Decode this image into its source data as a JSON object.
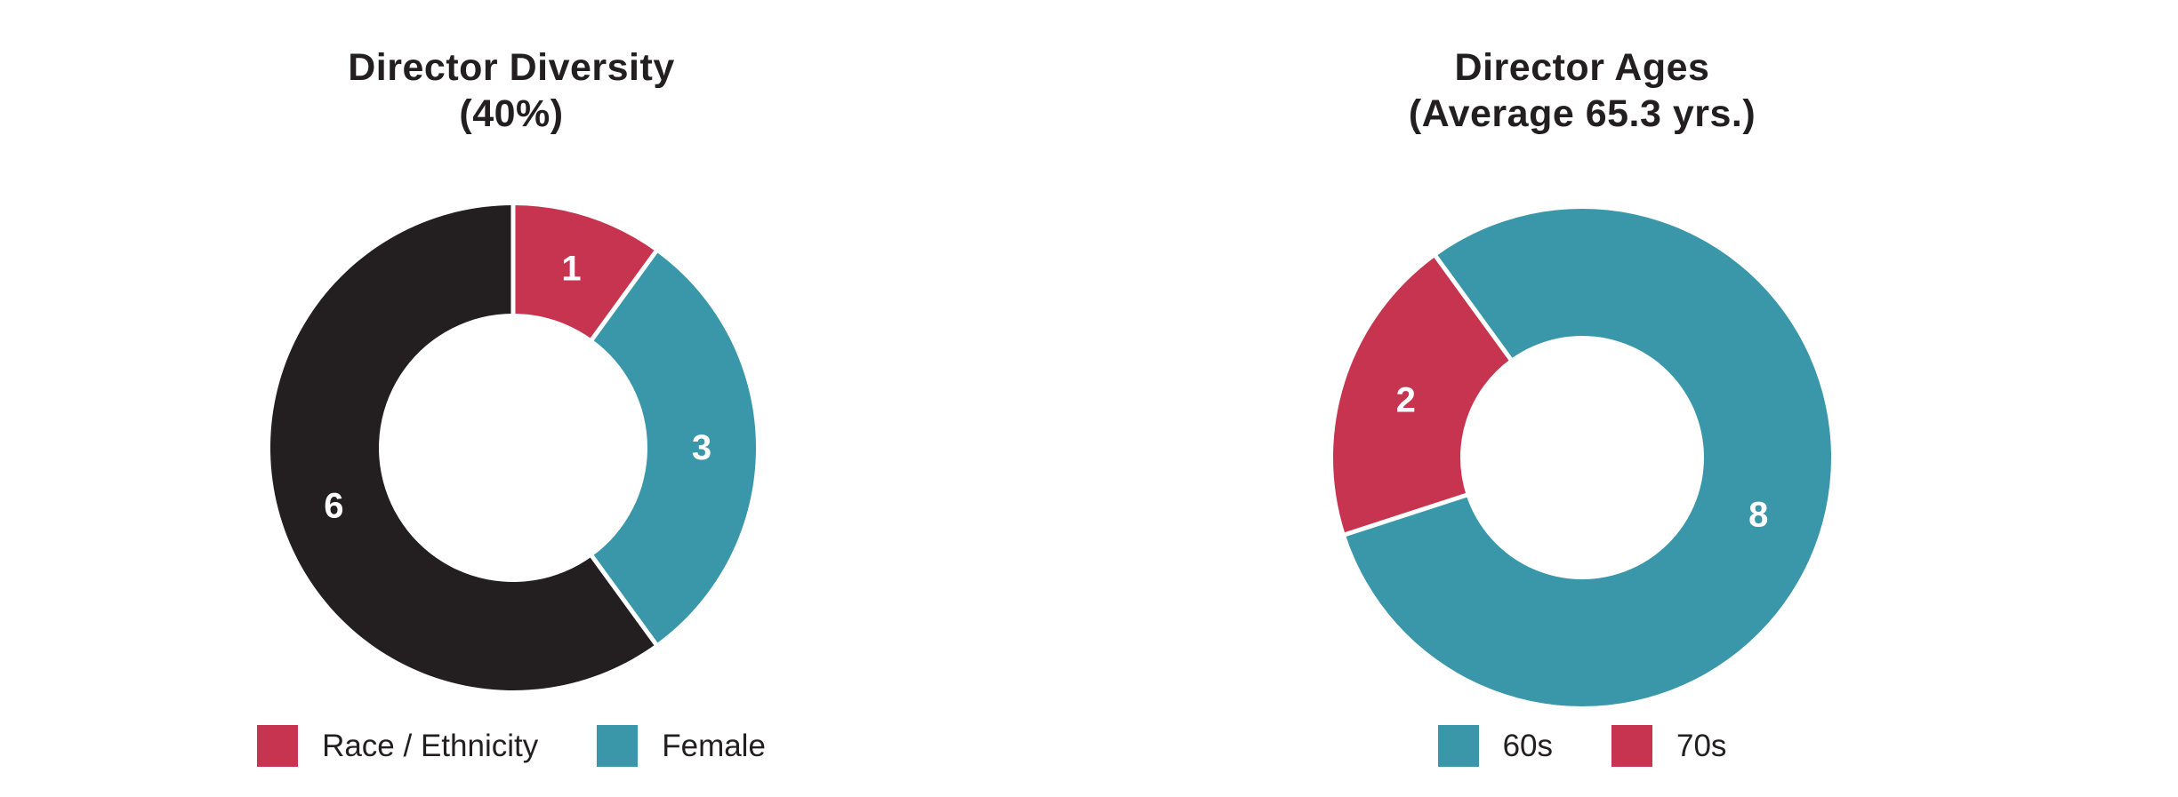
{
  "page": {
    "background": "#ffffff"
  },
  "chart_data": [
    {
      "type": "pie",
      "donut": true,
      "title": "Director Diversity",
      "subtitle": "(40%)",
      "start_angle_deg": 0,
      "direction": "clockwise",
      "hole_ratio": 0.55,
      "legend_position": "bottom",
      "data_label_color": "#ffffff",
      "separator_color": "#ffffff",
      "slices": [
        {
          "value": 1,
          "data_label": "1",
          "color": "#c6344f"
        },
        {
          "value": 3,
          "data_label": "3",
          "color": "#3997a9"
        },
        {
          "value": 6,
          "data_label": "6",
          "color": "#231f20"
        }
      ],
      "legend": [
        {
          "label": "Race / Ethnicity",
          "color": "#c6344f"
        },
        {
          "label": "Female",
          "color": "#3997a9"
        }
      ]
    },
    {
      "type": "pie",
      "donut": true,
      "title": "Director Ages",
      "subtitle": "(Average 65.3 yrs.)",
      "start_angle_deg": -36,
      "direction": "clockwise",
      "hole_ratio": 0.49,
      "legend_position": "bottom",
      "data_label_color": "#ffffff",
      "separator_color": "#ffffff",
      "slices": [
        {
          "value": 8,
          "data_label": "8",
          "color": "#3997a9"
        },
        {
          "value": 2,
          "data_label": "2",
          "color": "#c6344f"
        }
      ],
      "legend": [
        {
          "label": "60s",
          "color": "#3997a9"
        },
        {
          "label": "70s",
          "color": "#c6344f"
        }
      ]
    }
  ]
}
